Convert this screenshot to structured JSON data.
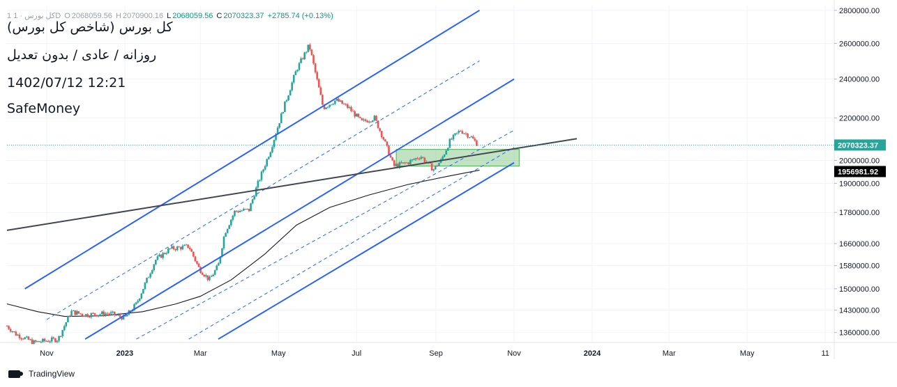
{
  "header": {
    "symbol_line": "1 کل بورس · 1D",
    "open_label": "O",
    "open_value": "2068059.56",
    "high_label": "H",
    "high_value": "2070900.16",
    "low_label": "L",
    "low_value": "2068059.56",
    "close_label": "C",
    "close_value": "2070323.37",
    "change": "+2785.74 (+0.13%)",
    "title": "کل بورس (شاخص کل بورس)",
    "subtitle": "روزانه / عادی / بدون تعدیل",
    "datetime": "1402/07/12 12:21",
    "author": "SafeMoney"
  },
  "footer": {
    "brand": "TradingView"
  },
  "colors": {
    "up": "#26a69a",
    "down": "#ef5350",
    "channel": "#2962ff",
    "trendline": "#434651",
    "zone_fill": "#4caf50",
    "price_tag": "#26a69a",
    "ma_tag": "#000000"
  },
  "chart_data": {
    "type": "candlestick",
    "title": "کل بورس (شاخص کل بورس)",
    "y_scale": "log",
    "ylim": [
      1330000,
      2830000
    ],
    "y_ticks": [
      1360000,
      1430000,
      1500000,
      1580000,
      1660000,
      1780000,
      1900000,
      2000000,
      2200000,
      2400000,
      2600000,
      2800000
    ],
    "y_tick_labels": [
      "1360000.00",
      "1430000.00",
      "1500000.00",
      "1580000.00",
      "1660000.00",
      "1780000.00",
      "1900000.00",
      "2000000.00",
      "2200000.00",
      "2400000.00",
      "2600000.00",
      "2800000.00"
    ],
    "x_ticks": [
      "2022-11-01",
      "2023-01-01",
      "2023-03-01",
      "2023-05-01",
      "2023-07-01",
      "2023-09-01",
      "2023-11-01",
      "2024-01-01",
      "2024-03-01",
      "2024-05-01",
      "2024-07-01"
    ],
    "x_tick_labels": [
      "Nov",
      "2023",
      "Mar",
      "May",
      "Jul",
      "Sep",
      "Nov",
      "2024",
      "Mar",
      "May",
      "11"
    ],
    "x_range": [
      "2022-10-01",
      "2024-07-08"
    ],
    "last_price": 2070323.37,
    "last_price_label": "2070323.37",
    "moving_average_value": 1956981.92,
    "moving_average_label": "1956981.92",
    "price_path": [
      [
        "2022-10-01",
        1380000
      ],
      [
        "2022-10-08",
        1355000
      ],
      [
        "2022-10-22",
        1330000
      ],
      [
        "2022-11-10",
        1340000
      ],
      [
        "2022-11-20",
        1425000
      ],
      [
        "2022-12-01",
        1415000
      ],
      [
        "2022-12-20",
        1420000
      ],
      [
        "2023-01-01",
        1405000
      ],
      [
        "2023-01-10",
        1450000
      ],
      [
        "2023-01-25",
        1600000
      ],
      [
        "2023-02-05",
        1640000
      ],
      [
        "2023-02-20",
        1650000
      ],
      [
        "2023-02-28",
        1570000
      ],
      [
        "2023-03-08",
        1530000
      ],
      [
        "2023-03-15",
        1580000
      ],
      [
        "2023-03-20",
        1700000
      ],
      [
        "2023-03-28",
        1785000
      ],
      [
        "2023-04-08",
        1790000
      ],
      [
        "2023-04-15",
        1900000
      ],
      [
        "2023-04-25",
        2050000
      ],
      [
        "2023-05-05",
        2250000
      ],
      [
        "2023-05-15",
        2450000
      ],
      [
        "2023-05-25",
        2590000
      ],
      [
        "2023-06-05",
        2250000
      ],
      [
        "2023-06-15",
        2290000
      ],
      [
        "2023-06-25",
        2250000
      ],
      [
        "2023-07-05",
        2180000
      ],
      [
        "2023-07-15",
        2200000
      ],
      [
        "2023-07-22",
        2100000
      ],
      [
        "2023-07-30",
        1975000
      ],
      [
        "2023-08-10",
        1990000
      ],
      [
        "2023-08-20",
        2020000
      ],
      [
        "2023-08-30",
        1960000
      ],
      [
        "2023-09-05",
        2000000
      ],
      [
        "2023-09-12",
        2090000
      ],
      [
        "2023-09-20",
        2140000
      ],
      [
        "2023-09-28",
        2110000
      ],
      [
        "2023-10-04",
        2070323
      ]
    ],
    "moving_average": [
      [
        "2022-10-01",
        1450000
      ],
      [
        "2022-10-25",
        1425000
      ],
      [
        "2022-11-15",
        1410000
      ],
      [
        "2022-12-15",
        1412000
      ],
      [
        "2023-01-15",
        1425000
      ],
      [
        "2023-02-10",
        1450000
      ],
      [
        "2023-03-01",
        1475000
      ],
      [
        "2023-03-25",
        1530000
      ],
      [
        "2023-04-20",
        1620000
      ],
      [
        "2023-05-15",
        1730000
      ],
      [
        "2023-06-10",
        1800000
      ],
      [
        "2023-07-10",
        1850000
      ],
      [
        "2023-08-10",
        1895000
      ],
      [
        "2023-09-10",
        1930000
      ],
      [
        "2023-10-05",
        1956982
      ]
    ],
    "channel_lines": [
      {
        "style": "solid",
        "from": [
          "2022-10-15",
          1500000
        ],
        "to": [
          "2023-10-05",
          2800000
        ]
      },
      {
        "style": "dashed",
        "from": [
          "2022-11-01",
          1400000
        ],
        "to": [
          "2023-10-05",
          2500000
        ]
      },
      {
        "style": "solid",
        "from": [
          "2022-12-01",
          1340000
        ],
        "to": [
          "2023-11-01",
          2400000
        ]
      },
      {
        "style": "dashed",
        "from": [
          "2023-01-10",
          1340000
        ],
        "to": [
          "2023-11-01",
          2140000
        ]
      },
      {
        "style": "dashed",
        "from": [
          "2023-02-20",
          1340000
        ],
        "to": [
          "2023-11-01",
          2060000
        ]
      },
      {
        "style": "solid",
        "from": [
          "2023-03-15",
          1340000
        ],
        "to": [
          "2023-11-01",
          1990000
        ]
      }
    ],
    "trendline": {
      "from": [
        "2022-10-01",
        1710000
      ],
      "to": [
        "2023-12-20",
        2100000
      ]
    },
    "zone": {
      "from": "2023-08-01",
      "to": "2023-11-05",
      "low": 1975000,
      "high": 2050000
    }
  }
}
